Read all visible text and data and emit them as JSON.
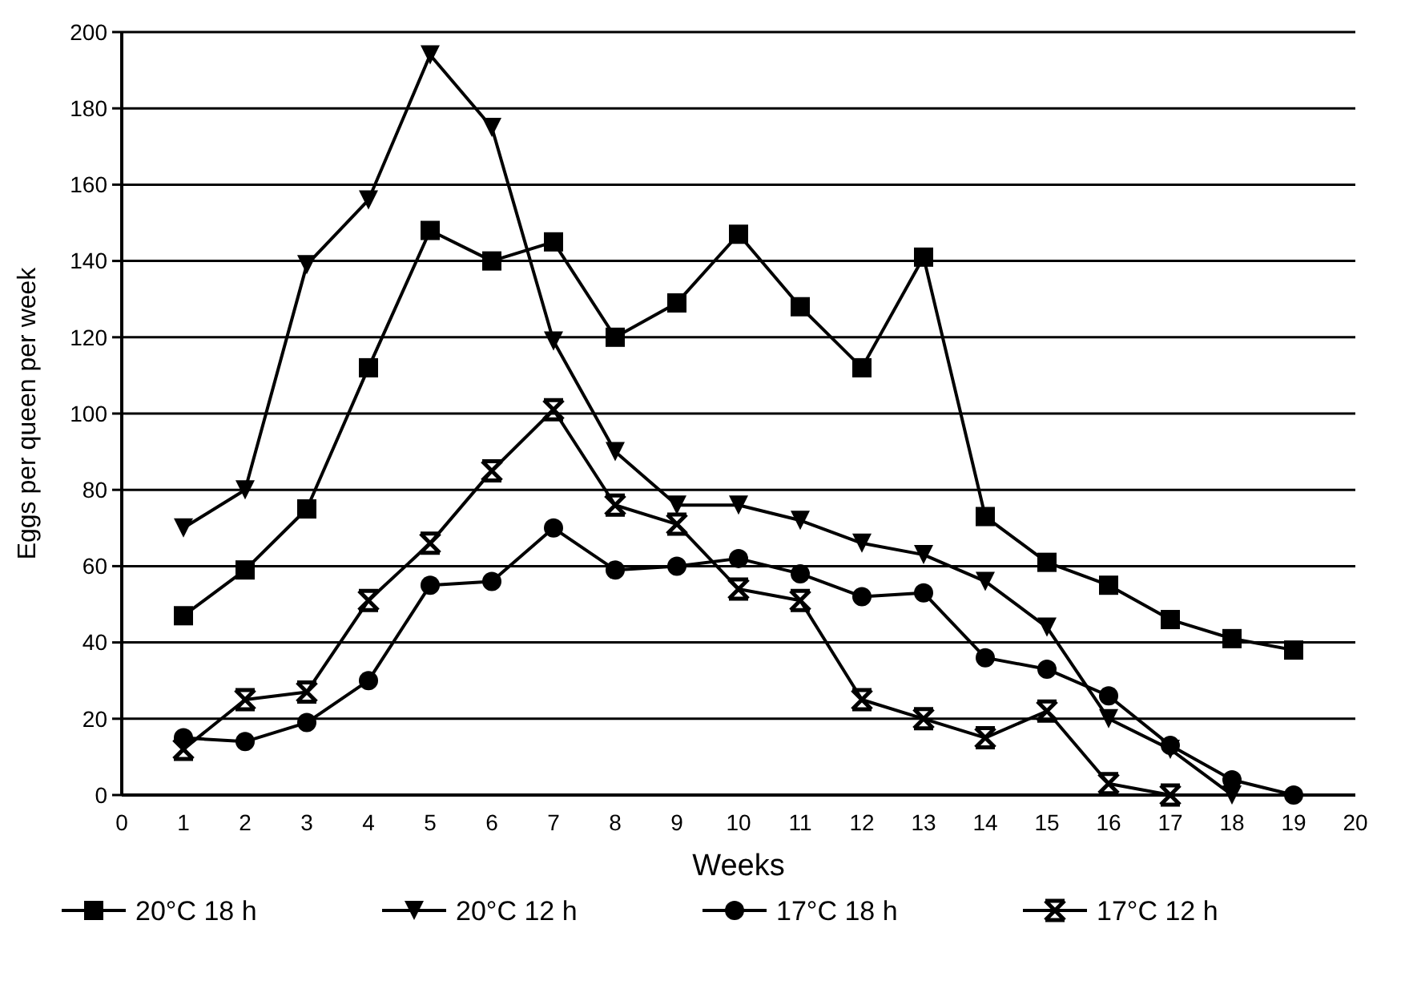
{
  "chart_data": {
    "type": "line",
    "xlabel": "Weeks",
    "ylabel": "Eggs per queen per week",
    "xlim": [
      0,
      20
    ],
    "xticks": [
      0,
      1,
      2,
      3,
      4,
      5,
      6,
      7,
      8,
      9,
      10,
      11,
      12,
      13,
      14,
      15,
      16,
      17,
      18,
      19,
      20
    ],
    "ylim": [
      0,
      200
    ],
    "yticks": [
      0,
      20,
      40,
      60,
      80,
      100,
      120,
      140,
      160,
      180,
      200
    ],
    "grid": "y",
    "legend": "bottom",
    "line_style": "solid",
    "series": [
      {
        "name": "20°C 18 h",
        "color": "#000000",
        "marker": "square",
        "x": [
          1,
          2,
          3,
          4,
          5,
          6,
          7,
          8,
          9,
          10,
          11,
          12,
          13,
          14,
          15,
          16,
          17,
          18,
          19
        ],
        "values": [
          47,
          59,
          75,
          112,
          148,
          140,
          145,
          120,
          129,
          147,
          128,
          112,
          141,
          73,
          61,
          55,
          46,
          41,
          38
        ]
      },
      {
        "name": "20°C 12 h",
        "color": "#000000",
        "marker": "triangle",
        "x": [
          1,
          2,
          3,
          4,
          5,
          6,
          7,
          8,
          9,
          10,
          11,
          12,
          13,
          14,
          15,
          16,
          17,
          18
        ],
        "values": [
          70,
          80,
          139,
          156,
          194,
          175,
          119,
          90,
          76,
          76,
          72,
          66,
          63,
          56,
          44,
          20,
          12,
          0
        ]
      },
      {
        "name": "17°C 18 h",
        "color": "#000000",
        "marker": "circle",
        "x": [
          1,
          2,
          3,
          4,
          5,
          6,
          7,
          8,
          9,
          10,
          11,
          12,
          13,
          14,
          15,
          16,
          17,
          18,
          19
        ],
        "values": [
          15,
          14,
          19,
          30,
          55,
          56,
          70,
          59,
          60,
          62,
          58,
          52,
          53,
          36,
          33,
          26,
          13,
          4,
          0
        ]
      },
      {
        "name": "17°C 12 h",
        "color": "#000000",
        "marker": "cross",
        "x": [
          1,
          2,
          3,
          4,
          5,
          6,
          7,
          8,
          9,
          10,
          11,
          12,
          13,
          14,
          15,
          16,
          17
        ],
        "values": [
          12,
          25,
          27,
          51,
          66,
          85,
          101,
          76,
          71,
          54,
          51,
          25,
          20,
          15,
          22,
          3,
          0
        ]
      }
    ]
  }
}
